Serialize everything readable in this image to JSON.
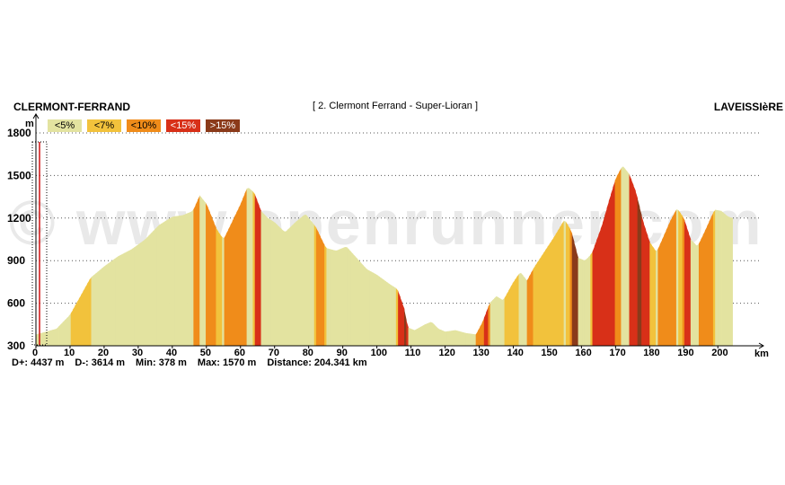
{
  "header": {
    "start": "CLERMONT-FERRAND",
    "stage": "[ 2. Clermont Ferrand - Super-Lioran ]",
    "end": "LAVEISSIèRE"
  },
  "legend": [
    {
      "label": "<5%",
      "color": "#e3e3a0"
    },
    {
      "label": "<7%",
      "color": "#f2c23c"
    },
    {
      "label": "<10%",
      "color": "#f08c1a"
    },
    {
      "label": "<15%",
      "color": "#d83018"
    },
    {
      "label": ">15%",
      "color": "#8b3a1a"
    }
  ],
  "stats": {
    "dplus": "D+: 4437 m",
    "dminus": "D-: 3614 m",
    "min": "Min: 378 m",
    "max": "Max: 1570 m",
    "distance": "Distance: 204.341 km"
  },
  "watermark": "© www.openrunner.com",
  "chart_data": {
    "type": "area",
    "title": "[ 2. Clermont Ferrand - Super-Lioran ]",
    "xlabel": "km",
    "ylabel": "m",
    "xlim": [
      0,
      206
    ],
    "ylim": [
      300,
      1800
    ],
    "xticks": [
      0,
      10,
      20,
      30,
      40,
      50,
      60,
      70,
      80,
      90,
      100,
      110,
      120,
      130,
      140,
      150,
      160,
      170,
      180,
      190,
      200
    ],
    "yticks": [
      300,
      600,
      900,
      1200,
      1500,
      1800
    ],
    "grid": "horizontal dotted",
    "series": [
      {
        "points": [
          [
            0,
            380
          ],
          [
            3,
            400
          ],
          [
            6,
            420
          ],
          [
            10,
            520
          ],
          [
            13,
            650
          ],
          [
            16,
            780
          ],
          [
            20,
            860
          ],
          [
            24,
            930
          ],
          [
            28,
            980
          ],
          [
            32,
            1050
          ],
          [
            36,
            1150
          ],
          [
            40,
            1210
          ],
          [
            43,
            1220
          ],
          [
            46,
            1250
          ],
          [
            48,
            1360
          ],
          [
            50,
            1300
          ],
          [
            53,
            1120
          ],
          [
            55,
            1050
          ],
          [
            57,
            1150
          ],
          [
            60,
            1300
          ],
          [
            62,
            1420
          ],
          [
            64,
            1380
          ],
          [
            66,
            1250
          ],
          [
            68,
            1200
          ],
          [
            70,
            1170
          ],
          [
            73,
            1100
          ],
          [
            76,
            1170
          ],
          [
            79,
            1230
          ],
          [
            82,
            1140
          ],
          [
            85,
            990
          ],
          [
            88,
            970
          ],
          [
            91,
            1000
          ],
          [
            94,
            920
          ],
          [
            97,
            840
          ],
          [
            100,
            800
          ],
          [
            104,
            730
          ],
          [
            106,
            700
          ],
          [
            108,
            560
          ],
          [
            109,
            430
          ],
          [
            111,
            410
          ],
          [
            114,
            450
          ],
          [
            116,
            470
          ],
          [
            118,
            420
          ],
          [
            120,
            400
          ],
          [
            123,
            410
          ],
          [
            126,
            390
          ],
          [
            129,
            380
          ],
          [
            131,
            470
          ],
          [
            133,
            600
          ],
          [
            135,
            650
          ],
          [
            137,
            620
          ],
          [
            140,
            750
          ],
          [
            142,
            820
          ],
          [
            144,
            760
          ],
          [
            146,
            850
          ],
          [
            149,
            960
          ],
          [
            152,
            1070
          ],
          [
            155,
            1190
          ],
          [
            157,
            1110
          ],
          [
            159,
            920
          ],
          [
            161,
            900
          ],
          [
            163,
            950
          ],
          [
            166,
            1150
          ],
          [
            168,
            1320
          ],
          [
            170,
            1480
          ],
          [
            172,
            1570
          ],
          [
            174,
            1510
          ],
          [
            176,
            1380
          ],
          [
            178,
            1180
          ],
          [
            180,
            1030
          ],
          [
            182,
            960
          ],
          [
            184,
            1070
          ],
          [
            186,
            1180
          ],
          [
            188,
            1270
          ],
          [
            190,
            1200
          ],
          [
            192,
            1050
          ],
          [
            194,
            1000
          ],
          [
            196,
            1100
          ],
          [
            199,
            1260
          ],
          [
            201,
            1250
          ],
          [
            203,
            1210
          ],
          [
            204.3,
            1200
          ]
        ]
      }
    ],
    "colors": {
      "grade5": "#e3e3a0",
      "grade7": "#f2c23c",
      "grade10": "#f08c1a",
      "grade15": "#d83018",
      "grade15plus": "#8b3a1a"
    }
  }
}
